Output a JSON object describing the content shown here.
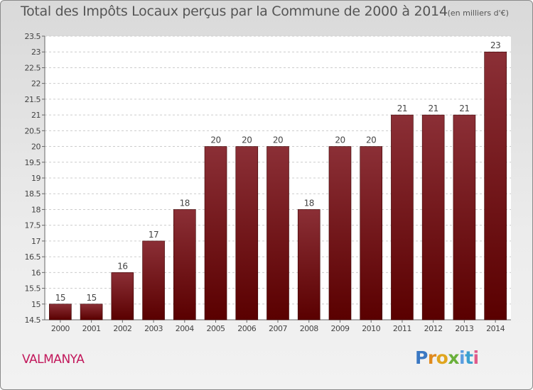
{
  "header": {
    "title": "Total des Impôts Locaux perçus par la Commune de 2000 à 2014",
    "unit": "(en milliers d'€)"
  },
  "footer": {
    "commune": "VALMANYA",
    "logo_letters": [
      "P",
      "r",
      "o",
      "x",
      "i",
      "t",
      "i"
    ]
  },
  "colors": {
    "bar_top": "#8b2f36",
    "bar_bottom": "#5a0000",
    "commune": "#c2185b"
  },
  "chart_data": {
    "type": "bar",
    "title": "Total des Impôts Locaux perçus par la Commune de 2000 à 2014",
    "subtitle": "(en milliers d'€)",
    "categories": [
      "2000",
      "2001",
      "2002",
      "2003",
      "2004",
      "2005",
      "2006",
      "2007",
      "2008",
      "2009",
      "2010",
      "2011",
      "2012",
      "2013",
      "2014"
    ],
    "values": [
      15,
      15,
      16,
      17,
      18,
      20,
      20,
      20,
      18,
      20,
      20,
      21,
      21,
      21,
      23
    ],
    "ylim": [
      14.5,
      23.5
    ],
    "yticks": [
      "14.5",
      "15",
      "15.5",
      "16",
      "16.5",
      "17",
      "17.5",
      "18",
      "18.5",
      "19",
      "19.5",
      "20",
      "20.5",
      "21",
      "21.5",
      "22",
      "22.5",
      "23",
      "23.5"
    ],
    "grid": true,
    "xlabel": "",
    "ylabel": ""
  }
}
